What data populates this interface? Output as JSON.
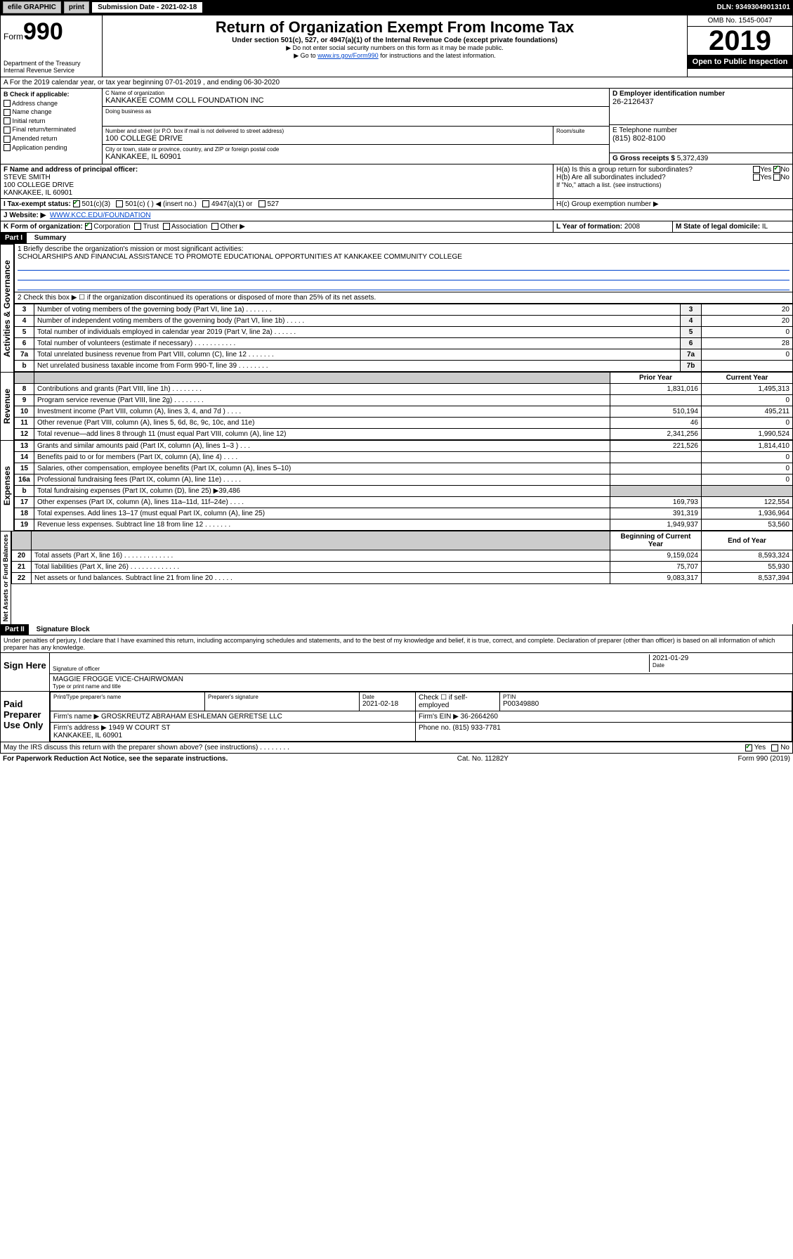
{
  "topbar": {
    "efile": "efile GRAPHIC",
    "btn_print": "print",
    "sub_label": "Submission Date - 2021-02-18",
    "dln": "DLN: 93493049013101"
  },
  "header": {
    "form_prefix": "Form",
    "form_num": "990",
    "title": "Return of Organization Exempt From Income Tax",
    "sub": "Under section 501(c), 527, or 4947(a)(1) of the Internal Revenue Code (except private foundations)",
    "note1": "▶ Do not enter social security numbers on this form as it may be made public.",
    "note2_pre": "▶ Go to ",
    "note2_link": "www.irs.gov/Form990",
    "note2_post": " for instructions and the latest information.",
    "dept": "Department of the Treasury\nInternal Revenue Service",
    "omb": "OMB No. 1545-0047",
    "year": "2019",
    "open": "Open to Public Inspection"
  },
  "period": {
    "text": "A For the 2019 calendar year, or tax year beginning 07-01-2019    , and ending 06-30-2020"
  },
  "boxB": {
    "label": "B Check if applicable:",
    "items": [
      "Address change",
      "Name change",
      "Initial return",
      "Final return/terminated",
      "Amended return",
      "Application pending"
    ]
  },
  "boxC": {
    "name_label": "C Name of organization",
    "name": "KANKAKEE COMM COLL FOUNDATION INC",
    "dba_label": "Doing business as",
    "addr_label": "Number and street (or P.O. box if mail is not delivered to street address)",
    "room_label": "Room/suite",
    "addr": "100 COLLEGE DRIVE",
    "city_label": "City or town, state or province, country, and ZIP or foreign postal code",
    "city": "KANKAKEE, IL  60901"
  },
  "boxD": {
    "label": "D Employer identification number",
    "value": "26-2126437"
  },
  "boxE": {
    "label": "E Telephone number",
    "value": "(815) 802-8100"
  },
  "boxG": {
    "label": "G Gross receipts $",
    "value": "5,372,439"
  },
  "boxF": {
    "label": "F Name and address of principal officer:",
    "name": "STEVE SMITH",
    "addr": "100 COLLEGE DRIVE\nKANKAKEE, IL  60901"
  },
  "boxH": {
    "a": "H(a)  Is this a group return for subordinates?",
    "b": "H(b)  Are all subordinates included?",
    "b_note": "If \"No,\" attach a list. (see instructions)",
    "c": "H(c)  Group exemption number ▶",
    "yes": "Yes",
    "no": "No"
  },
  "boxI": {
    "label": "I  Tax-exempt status:",
    "opts": [
      "501(c)(3)",
      "501(c) (  ) ◀ (insert no.)",
      "4947(a)(1) or",
      "527"
    ]
  },
  "boxJ": {
    "label": "J  Website: ▶",
    "value": "WWW.KCC.EDU/FOUNDATION"
  },
  "boxK": {
    "label": "K Form of organization:",
    "opts": [
      "Corporation",
      "Trust",
      "Association",
      "Other ▶"
    ]
  },
  "boxL": {
    "label": "L Year of formation:",
    "value": "2008"
  },
  "boxM": {
    "label": "M State of legal domicile:",
    "value": "IL"
  },
  "part1": {
    "header": "Part I",
    "title": "Summary",
    "line1_label": "1  Briefly describe the organization's mission or most significant activities:",
    "line1_value": "SCHOLARSHIPS AND FINANCIAL ASSISTANCE TO PROMOTE EDUCATIONAL OPPORTUNITIES AT KANKAKEE COMMUNITY COLLEGE",
    "line2": "2   Check this box ▶ ☐  if the organization discontinued its operations or disposed of more than 25% of its net assets.",
    "governance_label": "Activities & Governance",
    "revenue_label": "Revenue",
    "expenses_label": "Expenses",
    "netassets_label": "Net Assets or Fund Balances",
    "prior_year": "Prior Year",
    "current_year": "Current Year",
    "begin_year": "Beginning of Current Year",
    "end_year": "End of Year"
  },
  "gov_lines": [
    {
      "n": "3",
      "d": "Number of voting members of the governing body (Part VI, line 1a)  .    .    .    .    .    .    .",
      "b": "3",
      "v": "20"
    },
    {
      "n": "4",
      "d": "Number of independent voting members of the governing body (Part VI, line 1b)  .    .    .    .    .",
      "b": "4",
      "v": "20"
    },
    {
      "n": "5",
      "d": "Total number of individuals employed in calendar year 2019 (Part V, line 2a)  .    .    .    .    .    .",
      "b": "5",
      "v": "0"
    },
    {
      "n": "6",
      "d": "Total number of volunteers (estimate if necessary)  .    .    .    .    .    .    .    .    .    .    .",
      "b": "6",
      "v": "28"
    },
    {
      "n": "7a",
      "d": "Total unrelated business revenue from Part VIII, column (C), line 12  .    .    .    .    .    .    .",
      "b": "7a",
      "v": "0"
    },
    {
      "n": "b",
      "d": "Net unrelated business taxable income from Form 990-T, line 39  .    .    .    .    .    .    .    .",
      "b": "7b",
      "v": ""
    }
  ],
  "rev_lines": [
    {
      "n": "8",
      "d": "Contributions and grants (Part VIII, line 1h)  .    .    .    .    .    .    .    .",
      "p": "1,831,016",
      "c": "1,495,313"
    },
    {
      "n": "9",
      "d": "Program service revenue (Part VIII, line 2g)  .    .    .    .    .    .    .    .",
      "p": "",
      "c": "0"
    },
    {
      "n": "10",
      "d": "Investment income (Part VIII, column (A), lines 3, 4, and 7d )  .    .    .    .",
      "p": "510,194",
      "c": "495,211"
    },
    {
      "n": "11",
      "d": "Other revenue (Part VIII, column (A), lines 5, 6d, 8c, 9c, 10c, and 11e)",
      "p": "46",
      "c": "0"
    },
    {
      "n": "12",
      "d": "Total revenue—add lines 8 through 11 (must equal Part VIII, column (A), line 12)",
      "p": "2,341,256",
      "c": "1,990,524"
    }
  ],
  "exp_lines": [
    {
      "n": "13",
      "d": "Grants and similar amounts paid (Part IX, column (A), lines 1–3 )  .    .    .",
      "p": "221,526",
      "c": "1,814,410"
    },
    {
      "n": "14",
      "d": "Benefits paid to or for members (Part IX, column (A), line 4)  .    .    .    .",
      "p": "",
      "c": "0"
    },
    {
      "n": "15",
      "d": "Salaries, other compensation, employee benefits (Part IX, column (A), lines 5–10)",
      "p": "",
      "c": "0"
    },
    {
      "n": "16a",
      "d": "Professional fundraising fees (Part IX, column (A), line 11e)  .    .    .    .    .",
      "p": "",
      "c": "0"
    },
    {
      "n": "b",
      "d": "Total fundraising expenses (Part IX, column (D), line 25) ▶39,486",
      "p": null,
      "c": null
    },
    {
      "n": "17",
      "d": "Other expenses (Part IX, column (A), lines 11a–11d, 11f–24e)  .    .    .    .",
      "p": "169,793",
      "c": "122,554"
    },
    {
      "n": "18",
      "d": "Total expenses. Add lines 13–17 (must equal Part IX, column (A), line 25)",
      "p": "391,319",
      "c": "1,936,964"
    },
    {
      "n": "19",
      "d": "Revenue less expenses. Subtract line 18 from line 12  .    .    .    .    .    .    .",
      "p": "1,949,937",
      "c": "53,560"
    }
  ],
  "net_lines": [
    {
      "n": "20",
      "d": "Total assets (Part X, line 16)  .    .    .    .    .    .    .    .    .    .    .    .    .",
      "p": "9,159,024",
      "c": "8,593,324"
    },
    {
      "n": "21",
      "d": "Total liabilities (Part X, line 26)  .    .    .    .    .    .    .    .    .    .    .    .    .",
      "p": "75,707",
      "c": "55,930"
    },
    {
      "n": "22",
      "d": "Net assets or fund balances. Subtract line 21 from line 20  .    .    .    .    .",
      "p": "9,083,317",
      "c": "8,537,394"
    }
  ],
  "part2": {
    "header": "Part II",
    "title": "Signature Block",
    "perjury": "Under penalties of perjury, I declare that I have examined this return, including accompanying schedules and statements, and to the best of my knowledge and belief, it is true, correct, and complete. Declaration of preparer (other than officer) is based on all information of which preparer has any knowledge."
  },
  "sign": {
    "here": "Sign Here",
    "sig_officer": "Signature of officer",
    "date": "2021-01-29",
    "date_label": "Date",
    "name": "MAGGIE FROGGE  VICE-CHAIRWOMAN",
    "name_label": "Type or print name and title"
  },
  "paid": {
    "label": "Paid Preparer Use Only",
    "prep_name_label": "Print/Type preparer's name",
    "prep_sig_label": "Preparer's signature",
    "date_label": "Date",
    "date": "2021-02-18",
    "check_label": "Check ☐ if self-employed",
    "ptin_label": "PTIN",
    "ptin": "P00349880",
    "firm_name_label": "Firm's name      ▶",
    "firm_name": "GROSKREUTZ ABRAHAM ESHLEMAN GERRETSE LLC",
    "firm_ein_label": "Firm's EIN ▶",
    "firm_ein": "36-2664260",
    "firm_addr_label": "Firm's address ▶",
    "firm_addr": "1949 W COURT ST\nKANKAKEE, IL  60901",
    "phone_label": "Phone no.",
    "phone": "(815) 933-7781"
  },
  "footer": {
    "discuss": "May the IRS discuss this return with the preparer shown above? (see instructions)   .    .    .    .    .    .    .    .",
    "yes": "Yes",
    "no": "No",
    "paperwork": "For Paperwork Reduction Act Notice, see the separate instructions.",
    "cat": "Cat. No. 11282Y",
    "form": "Form 990 (2019)"
  }
}
